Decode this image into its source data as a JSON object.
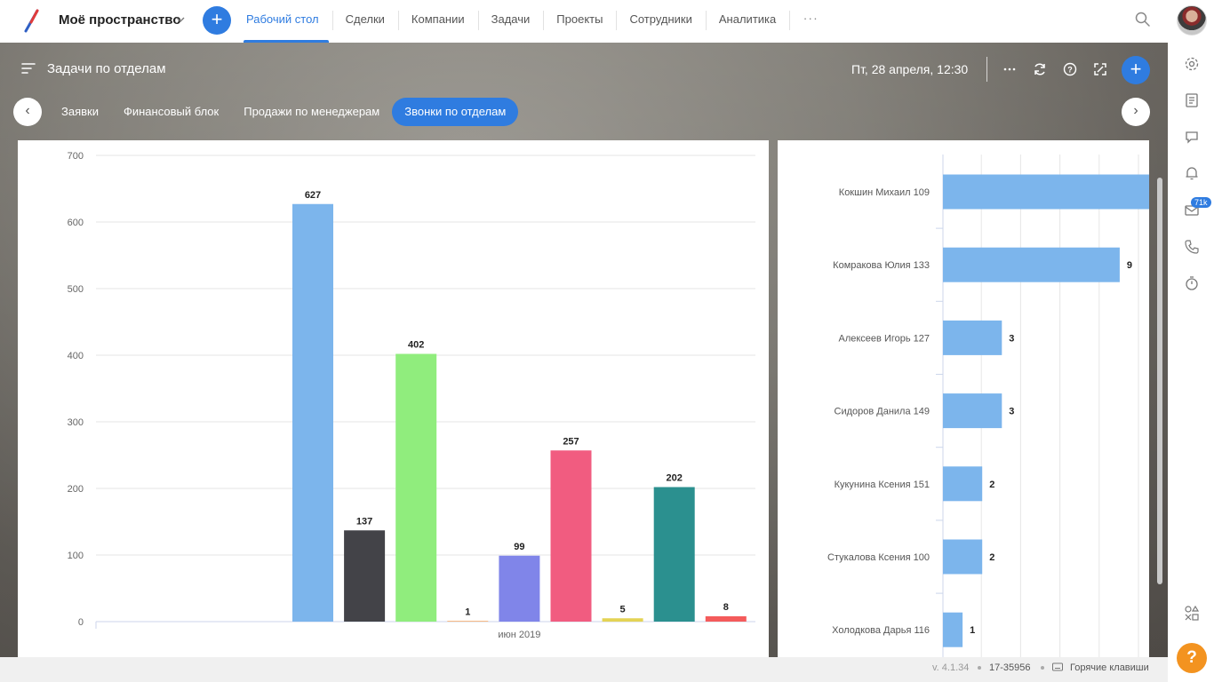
{
  "topbar": {
    "space_title": "Моё пространство",
    "nav": [
      {
        "label": "Рабочий стол",
        "active": true
      },
      {
        "label": "Сделки"
      },
      {
        "label": "Компании"
      },
      {
        "label": "Задачи"
      },
      {
        "label": "Проекты"
      },
      {
        "label": "Сотрудники"
      },
      {
        "label": "Аналитика"
      }
    ],
    "more_label": "···"
  },
  "board": {
    "title": "Задачи по отделам",
    "date": "Пт, 28 апреля, 12:30",
    "tabs": [
      {
        "label": "Заявки"
      },
      {
        "label": "Финансовый блок"
      },
      {
        "label": "Продажи по менеджерам"
      },
      {
        "label": "Звонки по отделам",
        "active": true
      }
    ]
  },
  "rightbar": {
    "badge": "71k",
    "help": "?"
  },
  "chart_data": [
    {
      "type": "bar",
      "categories": [
        "июн 2019"
      ],
      "ylim": [
        0,
        700
      ],
      "yticks": [
        0,
        100,
        200,
        300,
        400,
        500,
        600,
        700
      ],
      "series": [
        {
          "values": [
            627
          ],
          "color": "#7cb5ec"
        },
        {
          "values": [
            137
          ],
          "color": "#434348"
        },
        {
          "values": [
            402
          ],
          "color": "#90ed7d"
        },
        {
          "values": [
            1
          ],
          "color": "#f7a35c"
        },
        {
          "values": [
            99
          ],
          "color": "#8085e9"
        },
        {
          "values": [
            257
          ],
          "color": "#f15c80"
        },
        {
          "values": [
            5
          ],
          "color": "#e4d354"
        },
        {
          "values": [
            202
          ],
          "color": "#2b908f"
        },
        {
          "values": [
            8
          ],
          "color": "#f45b5b"
        }
      ]
    },
    {
      "type": "bar",
      "orientation": "horizontal",
      "categories": [
        "Кокшин Михаил 109",
        "Комракова Юлия 133",
        "Алексеев Игорь 127",
        "Сидоров Данила 149",
        "Кукунина Ксения 151",
        "Стукалова Ксения 100",
        "Холодкова Дарья 116"
      ],
      "values": [
        null,
        9,
        3,
        3,
        2,
        2,
        1
      ],
      "value_labels": [
        "",
        "9",
        "3",
        "3",
        "2",
        "2",
        "1"
      ],
      "xlim": [
        0,
        10
      ],
      "color": "#7cb5ec"
    }
  ],
  "footer": {
    "version": "v. 4.1.34",
    "build": "17-35956",
    "hotkeys": "Горячие клавиши"
  }
}
